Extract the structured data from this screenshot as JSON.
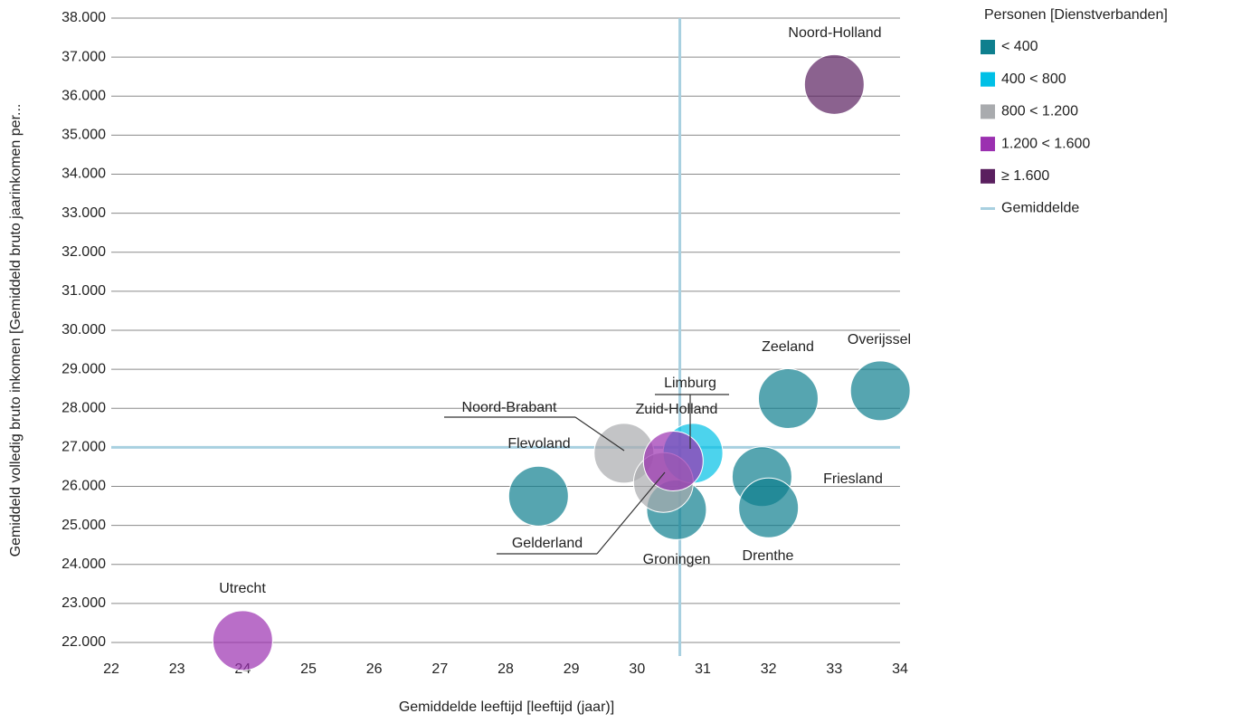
{
  "chart_data": {
    "type": "scatter",
    "xlabel": "Gemiddelde leeftijd [leeftijd (jaar)]",
    "ylabel": "Gemiddeld volledig bruto inkomen [Gemiddeld bruto jaarinkomen per...",
    "legend_title": "Personen [Dienstverbanden]",
    "legend": "right",
    "grid": true,
    "xlim": [
      22,
      34
    ],
    "xticks": [
      22,
      23,
      24,
      25,
      26,
      27,
      28,
      29,
      30,
      31,
      32,
      33,
      34
    ],
    "ylim": [
      22000,
      38000
    ],
    "yticks": [
      {
        "value": 22000,
        "label": "22.000"
      },
      {
        "value": 23000,
        "label": "23.000"
      },
      {
        "value": 24000,
        "label": "24.000"
      },
      {
        "value": 25000,
        "label": "25.000"
      },
      {
        "value": 26000,
        "label": "26.000"
      },
      {
        "value": 27000,
        "label": "27.000"
      },
      {
        "value": 28000,
        "label": "28.000"
      },
      {
        "value": 29000,
        "label": "29.000"
      },
      {
        "value": 30000,
        "label": "30.000"
      },
      {
        "value": 31000,
        "label": "31.000"
      },
      {
        "value": 32000,
        "label": "32.000"
      },
      {
        "value": 33000,
        "label": "33.000"
      },
      {
        "value": 34000,
        "label": "34.000"
      },
      {
        "value": 35000,
        "label": "35.000"
      },
      {
        "value": 36000,
        "label": "36.000"
      },
      {
        "value": 37000,
        "label": "37.000"
      },
      {
        "value": 38000,
        "label": "38.000"
      }
    ],
    "series": [
      {
        "name": "< 400",
        "color": "#0e7f8e",
        "points": [
          {
            "label": "Zeeland",
            "x": 32.3,
            "y": 28250
          },
          {
            "label": "Overijssel",
            "x": 33.7,
            "y": 28450
          },
          {
            "label": "Flevoland",
            "x": 28.5,
            "y": 25750
          },
          {
            "label": "Groningen",
            "x": 30.6,
            "y": 25400
          },
          {
            "label": "Friesland",
            "x": 31.9,
            "y": 26250
          },
          {
            "label": "Drenthe",
            "x": 32.0,
            "y": 25450
          }
        ]
      },
      {
        "name": "400 < 800",
        "color": "#00c0e6",
        "points": [
          {
            "label": "Limburg",
            "x": 30.85,
            "y": 26850
          }
        ]
      },
      {
        "name": "800 < 1.200",
        "color": "#a9abae",
        "points": [
          {
            "label": "Noord-Brabant",
            "x": 29.8,
            "y": 26850
          },
          {
            "label": "Gelderland",
            "x": 30.4,
            "y": 26100
          }
        ]
      },
      {
        "name": "1.200 < 1.600",
        "color": "#9b30b0",
        "points": [
          {
            "label": "Zuid-Holland",
            "x": 30.55,
            "y": 26650
          },
          {
            "label": "Utrecht",
            "x": 24.0,
            "y": 22050
          }
        ]
      },
      {
        "name": "≥ 1.600",
        "color": "#5a1f5f",
        "points": [
          {
            "label": "Noord-Holland",
            "x": 33.0,
            "y": 36300
          }
        ]
      }
    ],
    "mean": {
      "name": "Gemiddelde",
      "color": "#a8d0e0",
      "x": 30.65,
      "y": 27000
    }
  }
}
